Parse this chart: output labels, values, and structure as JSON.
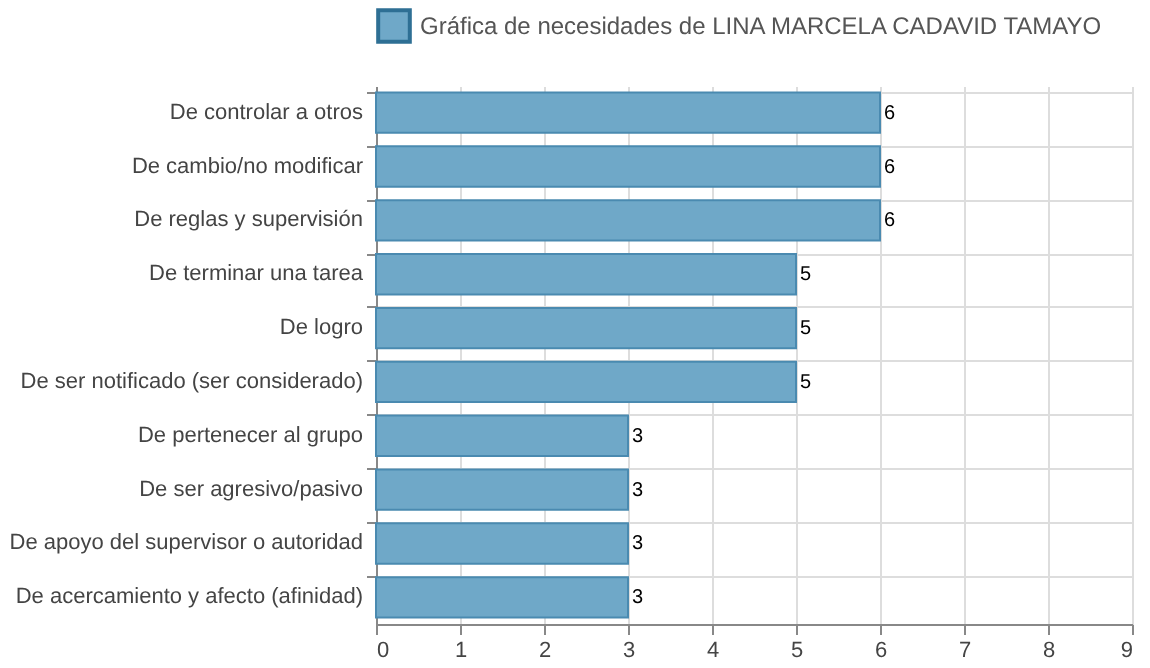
{
  "chart_data": {
    "type": "bar",
    "orientation": "horizontal",
    "categories": [
      "De controlar a otros",
      "De cambio/no modificar",
      "De reglas y supervisión",
      "De terminar una tarea",
      "De logro",
      "De ser notificado (ser considerado)",
      "De pertenecer al grupo",
      "De ser agresivo/pasivo",
      "De apoyo del supervisor o autoridad",
      "De acercamiento y afecto (afinidad)"
    ],
    "series": [
      {
        "name": "Gráfica de necesidades de LINA MARCELA CADAVID TAMAYO",
        "color": "#6fa8c8",
        "values": [
          6,
          6,
          6,
          5,
          5,
          5,
          3,
          3,
          3,
          3
        ]
      }
    ],
    "xlim": [
      0,
      9
    ],
    "xticks": [
      0,
      1,
      2,
      3,
      4,
      5,
      6,
      7,
      8,
      9
    ],
    "grid": true,
    "legend": "top",
    "data_labels": true
  }
}
